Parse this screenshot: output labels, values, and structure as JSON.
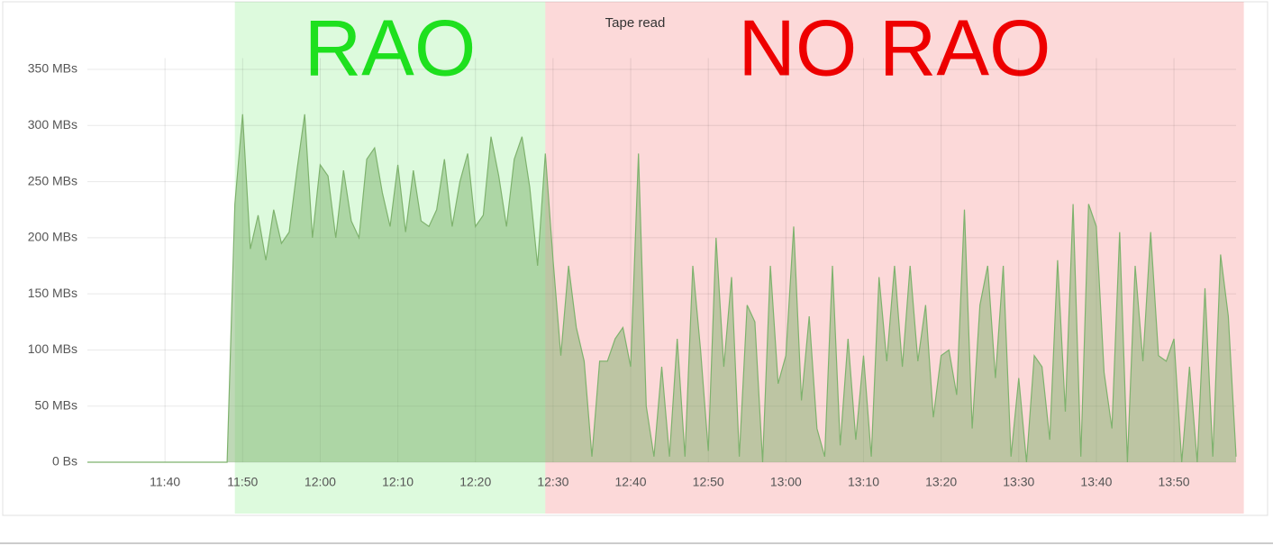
{
  "chart_data": {
    "type": "area",
    "title": "Tape read",
    "x": [
      "11:30",
      "11:31",
      "11:32",
      "11:33",
      "11:34",
      "11:35",
      "11:36",
      "11:37",
      "11:38",
      "11:39",
      "11:40",
      "11:41",
      "11:42",
      "11:43",
      "11:44",
      "11:45",
      "11:46",
      "11:47",
      "11:48",
      "11:49",
      "11:50",
      "11:51",
      "11:52",
      "11:53",
      "11:54",
      "11:55",
      "11:56",
      "11:57",
      "11:58",
      "11:59",
      "12:00",
      "12:01",
      "12:02",
      "12:03",
      "12:04",
      "12:05",
      "12:06",
      "12:07",
      "12:08",
      "12:09",
      "12:10",
      "12:11",
      "12:12",
      "12:13",
      "12:14",
      "12:15",
      "12:16",
      "12:17",
      "12:18",
      "12:19",
      "12:20",
      "12:21",
      "12:22",
      "12:23",
      "12:24",
      "12:25",
      "12:26",
      "12:27",
      "12:28",
      "12:29",
      "12:30",
      "12:31",
      "12:32",
      "12:33",
      "12:34",
      "12:35",
      "12:36",
      "12:37",
      "12:38",
      "12:39",
      "12:40",
      "12:41",
      "12:42",
      "12:43",
      "12:44",
      "12:45",
      "12:46",
      "12:47",
      "12:48",
      "12:49",
      "12:50",
      "12:51",
      "12:52",
      "12:53",
      "12:54",
      "12:55",
      "12:56",
      "12:57",
      "12:58",
      "12:59",
      "13:00",
      "13:01",
      "13:02",
      "13:03",
      "13:04",
      "13:05",
      "13:06",
      "13:07",
      "13:08",
      "13:09",
      "13:10",
      "13:11",
      "13:12",
      "13:13",
      "13:14",
      "13:15",
      "13:16",
      "13:17",
      "13:18",
      "13:19",
      "13:20",
      "13:21",
      "13:22",
      "13:23",
      "13:24",
      "13:25",
      "13:26",
      "13:27",
      "13:28",
      "13:29",
      "13:30",
      "13:31",
      "13:32",
      "13:33",
      "13:34",
      "13:35",
      "13:36",
      "13:37",
      "13:38",
      "13:39",
      "13:40",
      "13:41",
      "13:42",
      "13:43",
      "13:44",
      "13:45",
      "13:46",
      "13:47",
      "13:48",
      "13:49",
      "13:50",
      "13:51",
      "13:52",
      "13:53",
      "13:54",
      "13:55",
      "13:56",
      "13:57",
      "13:58"
    ],
    "series": [
      {
        "color": "#7eb26d",
        "values": [
          0,
          0,
          0,
          0,
          0,
          0,
          0,
          0,
          0,
          0,
          0,
          0,
          0,
          0,
          0,
          0,
          0,
          0,
          0,
          230,
          310,
          190,
          220,
          180,
          225,
          195,
          205,
          260,
          310,
          200,
          265,
          255,
          200,
          260,
          215,
          200,
          270,
          280,
          240,
          210,
          265,
          205,
          260,
          215,
          210,
          225,
          270,
          210,
          250,
          275,
          210,
          220,
          290,
          255,
          210,
          270,
          290,
          245,
          175,
          275,
          180,
          95,
          175,
          120,
          90,
          5,
          90,
          90,
          110,
          120,
          85,
          275,
          50,
          5,
          85,
          5,
          110,
          5,
          175,
          100,
          10,
          200,
          85,
          165,
          5,
          140,
          125,
          0,
          175,
          70,
          95,
          210,
          55,
          130,
          30,
          5,
          175,
          15,
          110,
          20,
          95,
          5,
          165,
          90,
          175,
          85,
          175,
          90,
          140,
          40,
          95,
          100,
          60,
          225,
          30,
          140,
          175,
          75,
          175,
          5,
          75,
          0,
          95,
          85,
          20,
          180,
          45,
          230,
          5,
          230,
          210,
          80,
          30,
          205,
          0,
          175,
          90,
          205,
          95,
          90,
          110,
          0,
          85,
          0,
          155,
          5,
          185,
          130,
          5
        ]
      }
    ],
    "xlim": [
      "11:30",
      "13:58"
    ],
    "xticks": [
      "11:40",
      "11:50",
      "12:00",
      "12:10",
      "12:20",
      "12:30",
      "12:40",
      "12:50",
      "13:00",
      "13:10",
      "13:20",
      "13:30",
      "13:40",
      "13:50"
    ],
    "ylim": [
      0,
      360
    ],
    "yticks": [
      {
        "value": 0,
        "label": "0 Bs"
      },
      {
        "value": 50,
        "label": "50 MBs"
      },
      {
        "value": 100,
        "label": "100 MBs"
      },
      {
        "value": 150,
        "label": "150 MBs"
      },
      {
        "value": 200,
        "label": "200 MBs"
      },
      {
        "value": 250,
        "label": "250 MBs"
      },
      {
        "value": 300,
        "label": "300 MBs"
      },
      {
        "value": 350,
        "label": "350 MBs"
      }
    ],
    "grid": true,
    "regions": [
      {
        "label": "RAO",
        "start": "11:49",
        "end": "12:29",
        "color": "#1ee01e"
      },
      {
        "label": "NO RAO",
        "start": "12:29",
        "end": "13:59",
        "color": "#ee0000"
      }
    ]
  }
}
